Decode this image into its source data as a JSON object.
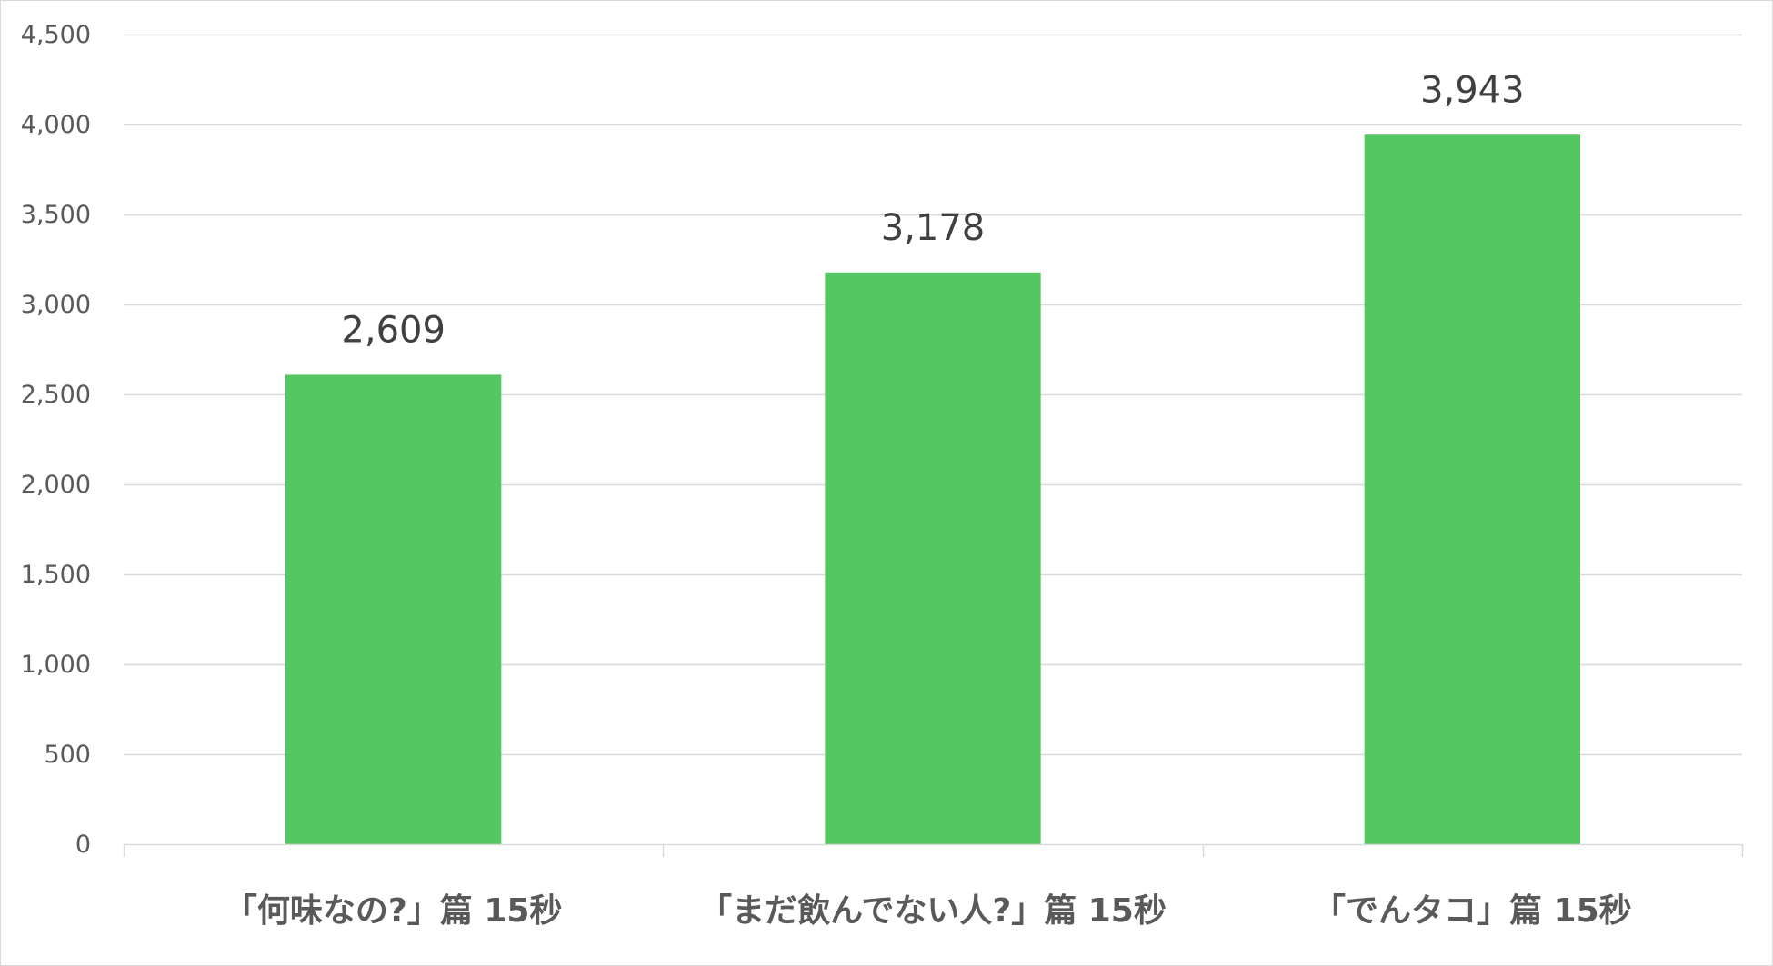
{
  "chart_data": {
    "type": "bar",
    "title": "",
    "xlabel": "",
    "ylabel": "",
    "categories": [
      "「何味なの?」篇 15秒",
      "「まだ飲んでない人?」篇 15秒",
      "「でんタコ」篇 15秒"
    ],
    "values": [
      2609,
      3178,
      3943
    ],
    "data_labels": [
      "2,609",
      "3,178",
      "3,943"
    ],
    "ylim": [
      0,
      4500
    ],
    "y_ticks": [
      0,
      500,
      1000,
      1500,
      2000,
      2500,
      3000,
      3500,
      4000,
      4500
    ],
    "y_tick_labels": [
      "0",
      "500",
      "1,000",
      "1,500",
      "2,000",
      "2,500",
      "3,000",
      "3,500",
      "4,000",
      "4,500"
    ],
    "grid": true,
    "legend": "none",
    "colors": {
      "bar": "#54c762",
      "grid": "#d9d9d9",
      "axis": "#d9d9d9",
      "border": "#d9d9d9",
      "tick_text": "#595959",
      "data_label_text": "#404040"
    }
  }
}
